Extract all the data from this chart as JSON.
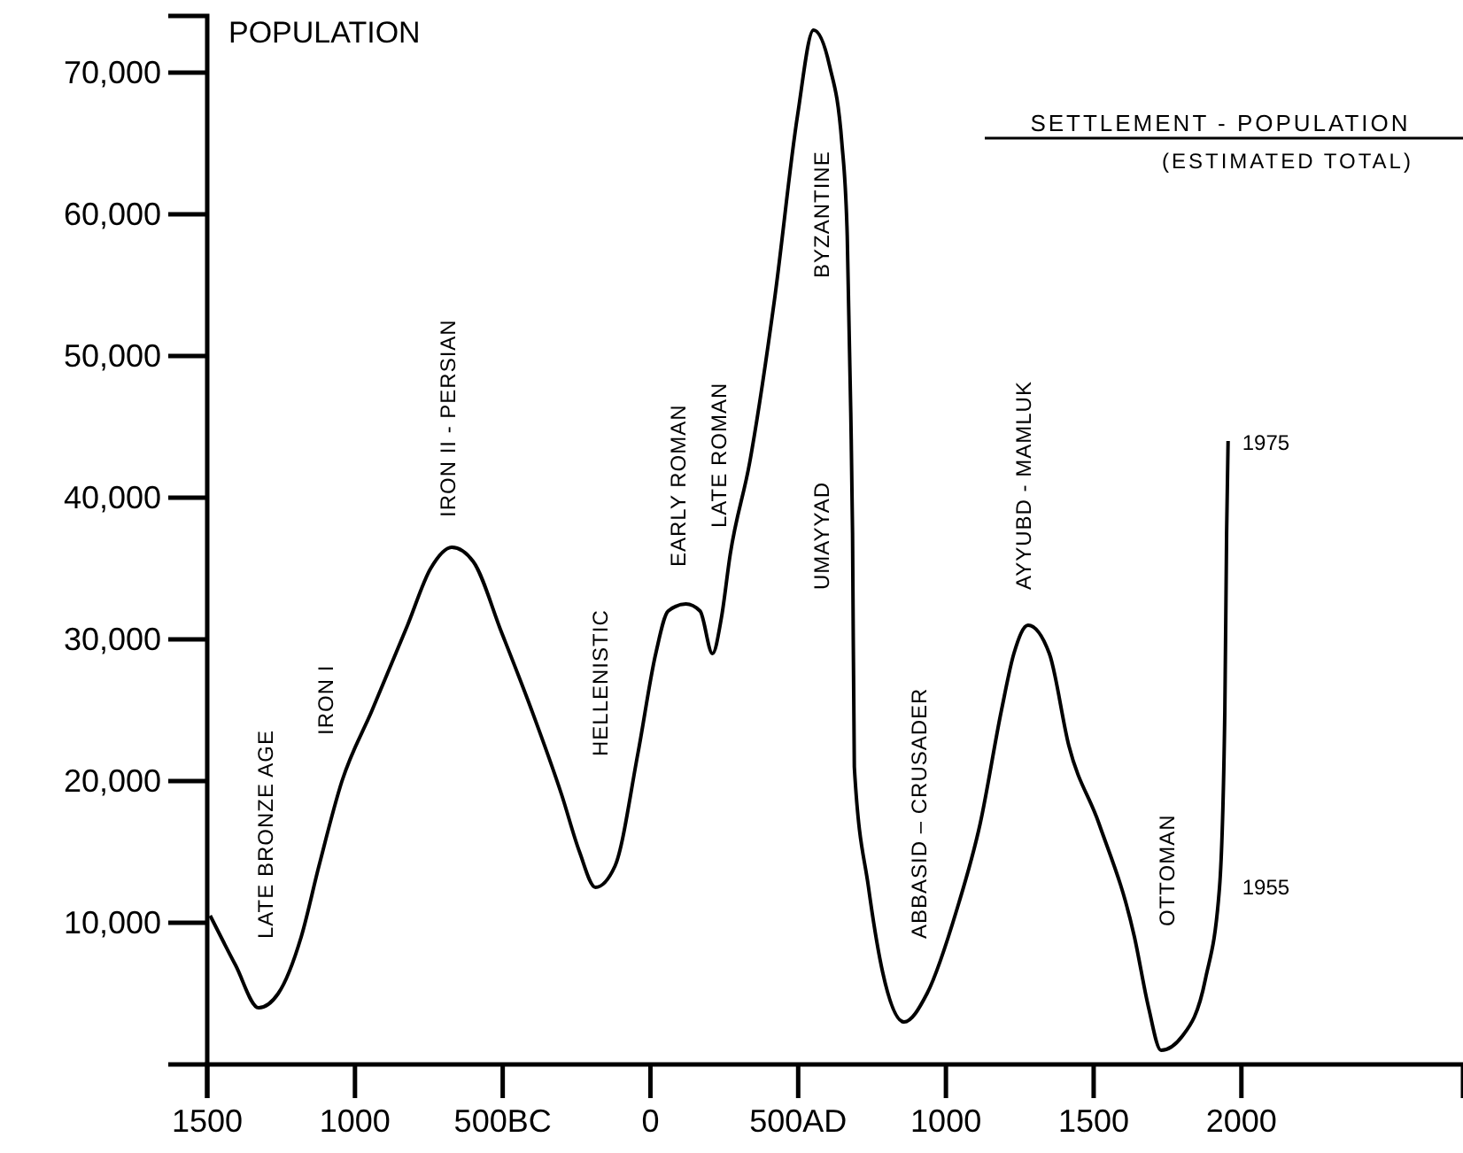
{
  "chart_data": {
    "type": "line",
    "title": "SETTLEMENT - POPULATION",
    "subtitle": "(ESTIMATED TOTAL)",
    "ylabel": "POPULATION",
    "xlim": [
      -1500,
      2750
    ],
    "ylim": [
      0,
      74000
    ],
    "xticks": [
      {
        "value": -1500,
        "label": "1500"
      },
      {
        "value": -1000,
        "label": "1000"
      },
      {
        "value": -500,
        "label": "500BC"
      },
      0,
      {
        "value": 500,
        "label": "500AD"
      },
      1000,
      1500,
      2000
    ],
    "yticks": [
      {
        "value": 10000,
        "label": "10,000"
      },
      {
        "value": 20000,
        "label": "20,000"
      },
      {
        "value": 30000,
        "label": "30,000"
      },
      {
        "value": 40000,
        "label": "40,000"
      },
      {
        "value": 50000,
        "label": "50,000"
      },
      {
        "value": 60000,
        "label": "60,000"
      },
      {
        "value": 70000,
        "label": "70,000"
      }
    ],
    "grid": false,
    "marker": "none",
    "line_style": "solid",
    "series": [
      {
        "color": "#000000",
        "x": [
          -1490,
          -1404,
          -1326,
          -1260,
          -1182,
          -1122,
          -1044,
          -942,
          -822,
          -744,
          -672,
          -600,
          -504,
          -402,
          -300,
          -240,
          -186,
          -120,
          -42,
          18,
          60,
          120,
          168,
          210,
          240,
          270,
          336,
          420,
          498,
          552,
          606,
          648,
          666,
          678,
          684,
          690,
          738,
          786,
          858,
          936,
          1038,
          1116,
          1188,
          1230,
          1278,
          1350,
          1416,
          1518,
          1638,
          1686,
          1728,
          1800,
          1878,
          1926,
          1944,
          1950,
          1955
        ],
        "values": [
          10500,
          7000,
          4000,
          5000,
          9000,
          14000,
          20000,
          25000,
          31000,
          35000,
          36500,
          35500,
          30500,
          25000,
          19000,
          15000,
          12500,
          14000,
          22000,
          29000,
          32000,
          32500,
          32000,
          29000,
          31500,
          36000,
          42500,
          54000,
          67000,
          73000,
          70500,
          65000,
          58500,
          46000,
          37500,
          21000,
          12500,
          6500,
          3000,
          5000,
          11000,
          17000,
          25000,
          29000,
          31000,
          29000,
          22500,
          17000,
          9000,
          4000,
          1000,
          2000,
          6000,
          12500,
          25000,
          37500,
          44000
        ]
      }
    ],
    "annotations": [
      {
        "text": "1975",
        "x": 1955,
        "y": 44000
      },
      {
        "text": "1955",
        "x": 1955,
        "y": 12600
      },
      "LATE BRONZE AGE",
      "IRON I",
      "IRON II - PERSIAN",
      "HELLENISTIC",
      "EARLY ROMAN",
      "LATE ROMAN",
      "BYZANTINE",
      "UMAYYAD",
      "ABBASID – CRUSADER",
      "AYYUBD - MAMLUK",
      "OTTOMAN"
    ]
  }
}
